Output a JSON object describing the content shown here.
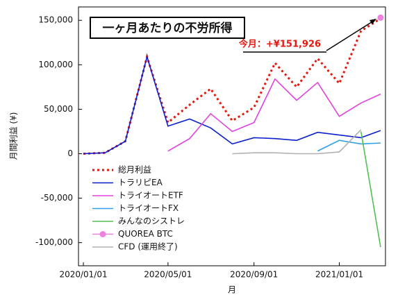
{
  "chart_data": {
    "type": "line",
    "title": "一ヶ月あたりの不労所得",
    "annotation": "今月：+¥151,926",
    "x_label": "月",
    "y_label": "月間利益 (¥)",
    "x": [
      "2020/01/01",
      "2020/02/01",
      "2020/03/01",
      "2020/04/01",
      "2020/05/01",
      "2020/06/01",
      "2020/07/01",
      "2020/08/01",
      "2020/09/01",
      "2020/10/01",
      "2020/11/01",
      "2020/12/01",
      "2021/01/01",
      "2021/02/01",
      "2021/03/01"
    ],
    "xlim": [
      "2019/12/25",
      "2021/03/08"
    ],
    "xticks": [
      "2020/01/01",
      "2020/05/01",
      "2020/09/01",
      "2021/01/01"
    ],
    "ylim": [
      -126000,
      165000
    ],
    "yticks": [
      {
        "value": -100000,
        "label": "-100,000"
      },
      {
        "value": -50000,
        "label": "-50,000"
      },
      0,
      {
        "value": 50000,
        "label": "50,000"
      },
      {
        "value": 100000,
        "label": "100,000"
      },
      {
        "value": 150000,
        "label": "150,000"
      }
    ],
    "series": [
      {
        "name": "総月利益",
        "color": "#e8160c",
        "style": "dotted",
        "values": [
          0,
          1000,
          14000,
          109000,
          35000,
          55000,
          73000,
          37000,
          52000,
          102000,
          75000,
          107000,
          79000,
          138000,
          151926
        ]
      },
      {
        "name": "トラリピEA",
        "color": "#0a1fd0",
        "style": "solid",
        "values": [
          0,
          1000,
          14000,
          109000,
          31000,
          39000,
          29000,
          11000,
          18000,
          17000,
          15000,
          24000,
          21000,
          18000,
          26000
        ]
      },
      {
        "name": "トライオートETF",
        "color": "#e040e0",
        "style": "solid",
        "values": [
          null,
          null,
          null,
          null,
          3000,
          17000,
          45000,
          25000,
          35000,
          84000,
          60000,
          80000,
          42000,
          57000,
          67000
        ]
      },
      {
        "name": "トライオートFX",
        "color": "#30a0e8",
        "style": "solid",
        "values": [
          null,
          null,
          null,
          null,
          null,
          null,
          null,
          null,
          null,
          null,
          null,
          3000,
          15000,
          11000,
          12000
        ]
      },
      {
        "name": "みんなのシストレ",
        "color": "#50c050",
        "style": "solid",
        "values": [
          null,
          null,
          null,
          null,
          null,
          null,
          null,
          null,
          null,
          null,
          null,
          null,
          null,
          25000,
          -105000
        ]
      },
      {
        "name": "QUOREA BTC",
        "color": "#f080e0",
        "style": "marker",
        "values": [
          null,
          null,
          null,
          null,
          null,
          null,
          null,
          null,
          null,
          null,
          null,
          null,
          null,
          null,
          153000
        ]
      },
      {
        "name": "CFD (運用終了)",
        "color": "#b0b0b0",
        "style": "solid",
        "values": [
          null,
          null,
          null,
          null,
          null,
          null,
          null,
          0,
          1000,
          1000,
          0,
          0,
          2000,
          27000,
          null
        ]
      }
    ]
  }
}
